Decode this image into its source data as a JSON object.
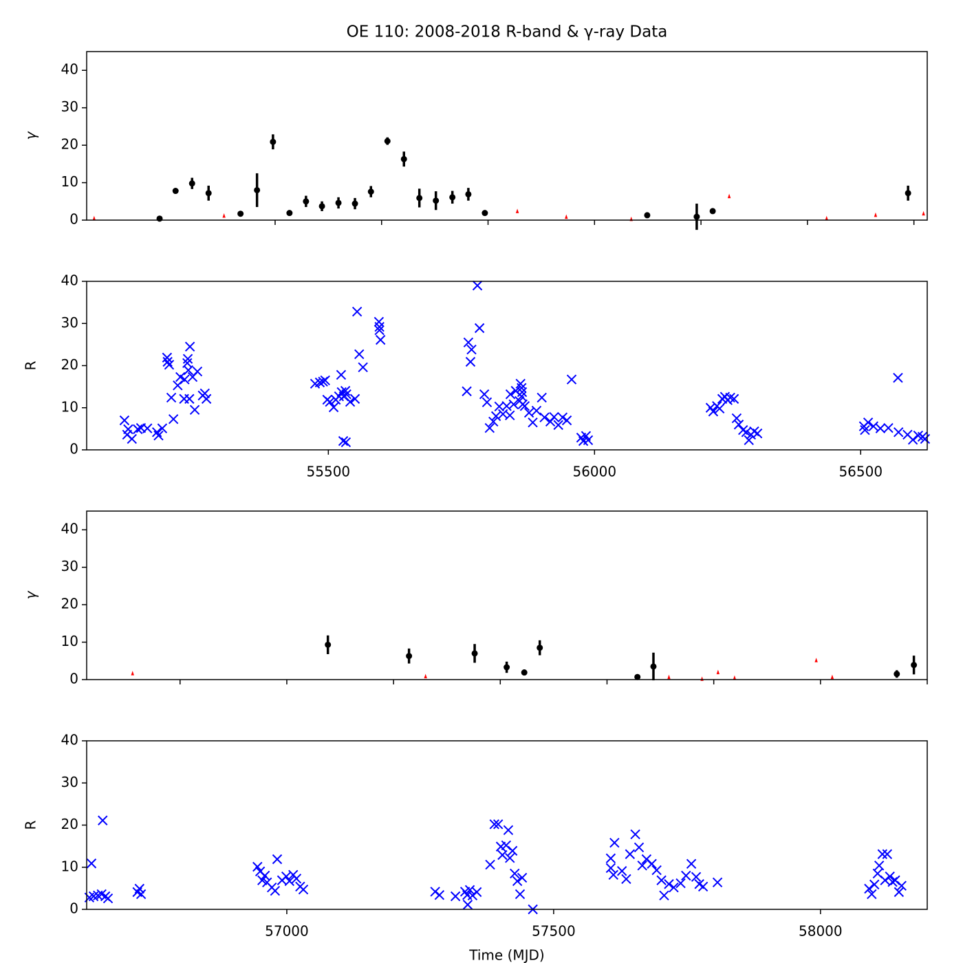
{
  "chart_data": [
    {
      "type": "scatter",
      "title": "OE 110: 2008-2018 R-band & γ-ray Data",
      "ylabel": "γ",
      "xlim": [
        55046,
        56625
      ],
      "xticks": [
        55400,
        55600,
        55800,
        56000,
        56200,
        56400,
        56600
      ],
      "show_xtick_labels": false,
      "ylim": [
        0,
        45
      ],
      "yticks": [
        0,
        10,
        20,
        30,
        40
      ],
      "series": [
        {
          "color": "#000000",
          "marker": "o",
          "x": [
            55183,
            55213,
            55244,
            55275,
            55335,
            55366,
            55396,
            55427,
            55458,
            55488,
            55519,
            55550,
            55580,
            55611,
            55642,
            55671,
            55702,
            55733,
            55763,
            55794,
            56099,
            56192,
            56222,
            56589
          ],
          "values": [
            0.4,
            7.8,
            9.8,
            7.2,
            1.7,
            8.0,
            20.9,
            1.9,
            5.0,
            3.7,
            4.6,
            4.4,
            7.6,
            21.1,
            16.3,
            5.9,
            5.2,
            6.1,
            6.9,
            1.9,
            1.3,
            0.9,
            2.4,
            7.2
          ],
          "errors": [
            0.5,
            0.5,
            1.5,
            2.0,
            0.3,
            4.5,
            2.0,
            0.3,
            1.5,
            1.3,
            1.5,
            1.5,
            1.5,
            1.0,
            2.0,
            2.5,
            2.5,
            1.7,
            1.7,
            0.3,
            0.5,
            3.5,
            0.3,
            2.0
          ]
        },
        {
          "color": "#ff0000",
          "marker": "^",
          "x": [
            55060,
            55304,
            55855,
            55947,
            56069,
            56253,
            56436,
            56528,
            56618
          ],
          "values": [
            0.5,
            1.2,
            2.4,
            0.9,
            0.3,
            6.4,
            0.5,
            1.4,
            1.8
          ]
        }
      ]
    },
    {
      "type": "scatter",
      "ylabel": "R",
      "xlim": [
        55046,
        56625
      ],
      "xticks": [
        55500,
        56000,
        56500
      ],
      "show_xtick_labels": true,
      "ylim": [
        0,
        40
      ],
      "yticks": [
        0,
        10,
        20,
        30,
        40
      ],
      "series": [
        {
          "color": "#0000ff",
          "marker": "x",
          "x": [
            55117,
            55124,
            55122,
            55131,
            55142,
            55148,
            55160,
            55178,
            55181,
            55188,
            55197,
            55201,
            55198,
            55205,
            55209,
            55217,
            55222,
            55229,
            55230,
            55235,
            55236,
            55237,
            55240,
            55239,
            55245,
            55249,
            55254,
            55264,
            55268,
            55271,
            55475,
            55484,
            55490,
            55494,
            55498,
            55503,
            55510,
            55514,
            55520,
            55524,
            55525,
            55528,
            55529,
            55532,
            55533,
            55534,
            55541,
            55550,
            55554,
            55558,
            55565,
            55595,
            55596,
            55598,
            55596,
            55760,
            55763,
            55767,
            55769,
            55780,
            55784,
            55793,
            55798,
            55803,
            55810,
            55815,
            55821,
            55828,
            55835,
            55841,
            55842,
            55848,
            55852,
            55859,
            55861,
            55863,
            55863,
            55864,
            55865,
            55869,
            55877,
            55884,
            55891,
            55901,
            55906,
            55917,
            55924,
            55932,
            55940,
            55948,
            55957,
            55975,
            55979,
            55984,
            55988,
            56218,
            56223,
            56230,
            56235,
            56240,
            56245,
            56250,
            56255,
            56262,
            56267,
            56271,
            56279,
            56285,
            56290,
            56294,
            56300,
            56306,
            56506,
            56508,
            56514,
            56524,
            56537,
            56552,
            56570,
            56571,
            56588,
            56598,
            56608,
            56616,
            56621
          ],
          "values": [
            7.0,
            4.9,
            3.6,
            2.6,
            4.9,
            5.2,
            5.1,
            4.2,
            3.4,
            5.1,
            21.9,
            20.2,
            20.9,
            12.4,
            7.3,
            15.3,
            17.3,
            12.1,
            16.7,
            20.6,
            21.6,
            18.9,
            24.5,
            12.1,
            17.3,
            9.5,
            18.6,
            12.9,
            13.4,
            12.1,
            15.7,
            16.0,
            16.2,
            16.5,
            11.9,
            11.4,
            10.1,
            11.9,
            12.7,
            17.8,
            13.7,
            2.1,
            12.7,
            14.0,
            1.8,
            13.2,
            11.4,
            12.1,
            32.8,
            22.7,
            19.6,
            30.4,
            28.4,
            26.1,
            29.2,
            13.9,
            25.5,
            20.9,
            23.8,
            39.0,
            28.9,
            13.2,
            11.3,
            5.2,
            6.7,
            8.0,
            10.3,
            8.5,
            10.4,
            8.2,
            13.2,
            10.8,
            14.0,
            11.6,
            15.7,
            14.7,
            12.7,
            13.7,
            10.8,
            10.4,
            8.8,
            6.5,
            9.3,
            12.4,
            7.7,
            6.7,
            7.8,
            5.9,
            7.7,
            7.0,
            16.7,
            2.9,
            2.1,
            3.3,
            2.3,
            10.0,
            9.1,
            10.4,
            9.8,
            12.1,
            12.6,
            11.8,
            12.4,
            12.1,
            7.5,
            6.0,
            4.7,
            4.2,
            2.3,
            3.6,
            4.4,
            3.9,
            5.6,
            4.7,
            6.5,
            5.6,
            5.1,
            5.2,
            17.1,
            4.2,
            3.6,
            2.4,
            3.4,
            3.1,
            2.6
          ]
        }
      ]
    },
    {
      "type": "scatter",
      "ylabel": "γ",
      "xlim": [
        56625,
        58200
      ],
      "xticks": [
        56800,
        57000,
        57200,
        57400,
        57600,
        57800,
        58000,
        58200
      ],
      "show_xtick_labels": false,
      "ylim": [
        0,
        45
      ],
      "yticks": [
        0,
        10,
        20,
        30,
        40
      ],
      "series": [
        {
          "color": "#000000",
          "marker": "o",
          "x": [
            57077,
            57229,
            57352,
            57412,
            57445,
            57474,
            57657,
            57687,
            58143,
            58175
          ],
          "values": [
            9.3,
            6.3,
            7.0,
            3.3,
            1.9,
            8.5,
            0.7,
            3.5,
            1.5,
            3.9
          ],
          "errors": [
            2.5,
            2.0,
            2.5,
            1.5,
            0.8,
            2.0,
            0.3,
            3.7,
            1.0,
            2.5
          ]
        },
        {
          "color": "#ff0000",
          "marker": "^",
          "x": [
            56711,
            57260,
            57716,
            57778,
            57808,
            57839,
            57992,
            58022
          ],
          "values": [
            1.7,
            0.9,
            0.7,
            0.2,
            2.0,
            0.5,
            5.2,
            0.7
          ]
        }
      ]
    },
    {
      "type": "scatter",
      "ylabel": "R",
      "xlabel": "Time (MJD)",
      "xlim": [
        56625,
        58200
      ],
      "xticks": [
        57000,
        57500,
        58000
      ],
      "show_xtick_labels": true,
      "ylim": [
        0,
        40
      ],
      "yticks": [
        0,
        10,
        20,
        30,
        40
      ],
      "series": [
        {
          "color": "#0000ff",
          "marker": "x",
          "x": [
            56634,
            56630,
            56638,
            56646,
            56653,
            56655,
            56660,
            56665,
            56720,
            56724,
            56727,
            56945,
            56950,
            56954,
            56959,
            56963,
            56972,
            56978,
            56982,
            56991,
            56999,
            57005,
            57012,
            57018,
            57025,
            57031,
            57278,
            57286,
            57316,
            57334,
            57338,
            57339,
            57343,
            57348,
            57356,
            57381,
            57389,
            57396,
            57401,
            57404,
            57411,
            57415,
            57418,
            57423,
            57427,
            57432,
            57437,
            57441,
            57461,
            57607,
            57607,
            57612,
            57614,
            57628,
            57636,
            57643,
            57653,
            57660,
            57666,
            57674,
            57684,
            57693,
            57702,
            57707,
            57716,
            57725,
            57738,
            57748,
            57758,
            57767,
            57773,
            57780,
            57807,
            58091,
            58096,
            58101,
            58107,
            58110,
            58116,
            58121,
            58125,
            58130,
            58135,
            58140,
            58147,
            58152
          ],
          "values": [
            10.9,
            2.8,
            3.1,
            3.3,
            3.6,
            21.1,
            3.1,
            2.6,
            4.1,
            4.9,
            3.6,
            10.1,
            9.0,
            6.9,
            8.0,
            6.4,
            5.2,
            4.4,
            11.9,
            6.9,
            7.8,
            6.7,
            8.2,
            7.3,
            5.4,
            4.7,
            4.2,
            3.4,
            3.1,
            4.2,
            3.4,
            1.1,
            4.6,
            3.3,
            4.1,
            10.6,
            20.2,
            20.2,
            14.9,
            12.9,
            15.2,
            18.8,
            12.2,
            13.9,
            8.5,
            6.7,
            3.6,
            7.5,
            0,
            12.1,
            9.8,
            8.2,
            15.8,
            9.1,
            7.2,
            13.1,
            17.8,
            14.7,
            10.4,
            11.9,
            10.8,
            9.3,
            6.9,
            3.3,
            6.0,
            5.2,
            6.2,
            8.0,
            10.8,
            7.7,
            6.0,
            5.4,
            6.4,
            4.9,
            3.6,
            5.9,
            8.5,
            10.4,
            13.1,
            6.9,
            13.1,
            7.8,
            6.5,
            6.9,
            4.1,
            5.6
          ]
        }
      ]
    }
  ]
}
